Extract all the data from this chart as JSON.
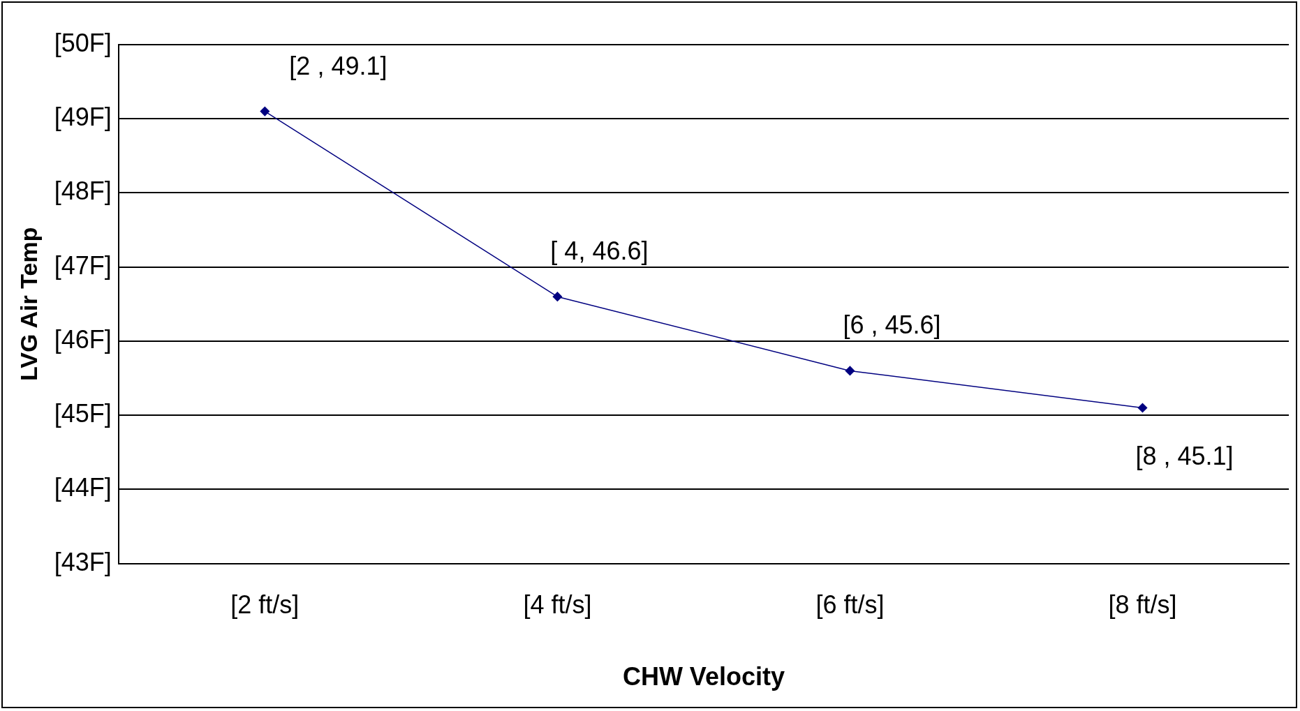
{
  "chart_data": {
    "type": "line",
    "xlabel": "CHW Velocity",
    "ylabel": "LVG Air Temp",
    "categories": [
      "[2 ft/s]",
      "[4 ft/s]",
      "[6 ft/s]",
      "[8 ft/s]"
    ],
    "series": [
      {
        "color": "#000080",
        "values": [
          49.1,
          46.6,
          45.6,
          45.1
        ],
        "value_labels": [
          "[2 , 49.1]",
          "[ 4, 46.6]",
          "[6 , 45.6]",
          "[8 , 45.1]"
        ]
      }
    ],
    "ylim": [
      43,
      50
    ],
    "yticks": [
      {
        "value": 43,
        "label": "[43F]"
      },
      {
        "value": 44,
        "label": "[44F]"
      },
      {
        "value": 45,
        "label": "[45F]"
      },
      {
        "value": 46,
        "label": "[46F]"
      },
      {
        "value": 47,
        "label": "[47F]"
      },
      {
        "value": 48,
        "label": "[48F]"
      },
      {
        "value": 49,
        "label": "[49F]"
      },
      {
        "value": 50,
        "label": "[50F]"
      }
    ],
    "grid": "y",
    "marker": "diamond",
    "line_style": "solid",
    "legend": false
  }
}
